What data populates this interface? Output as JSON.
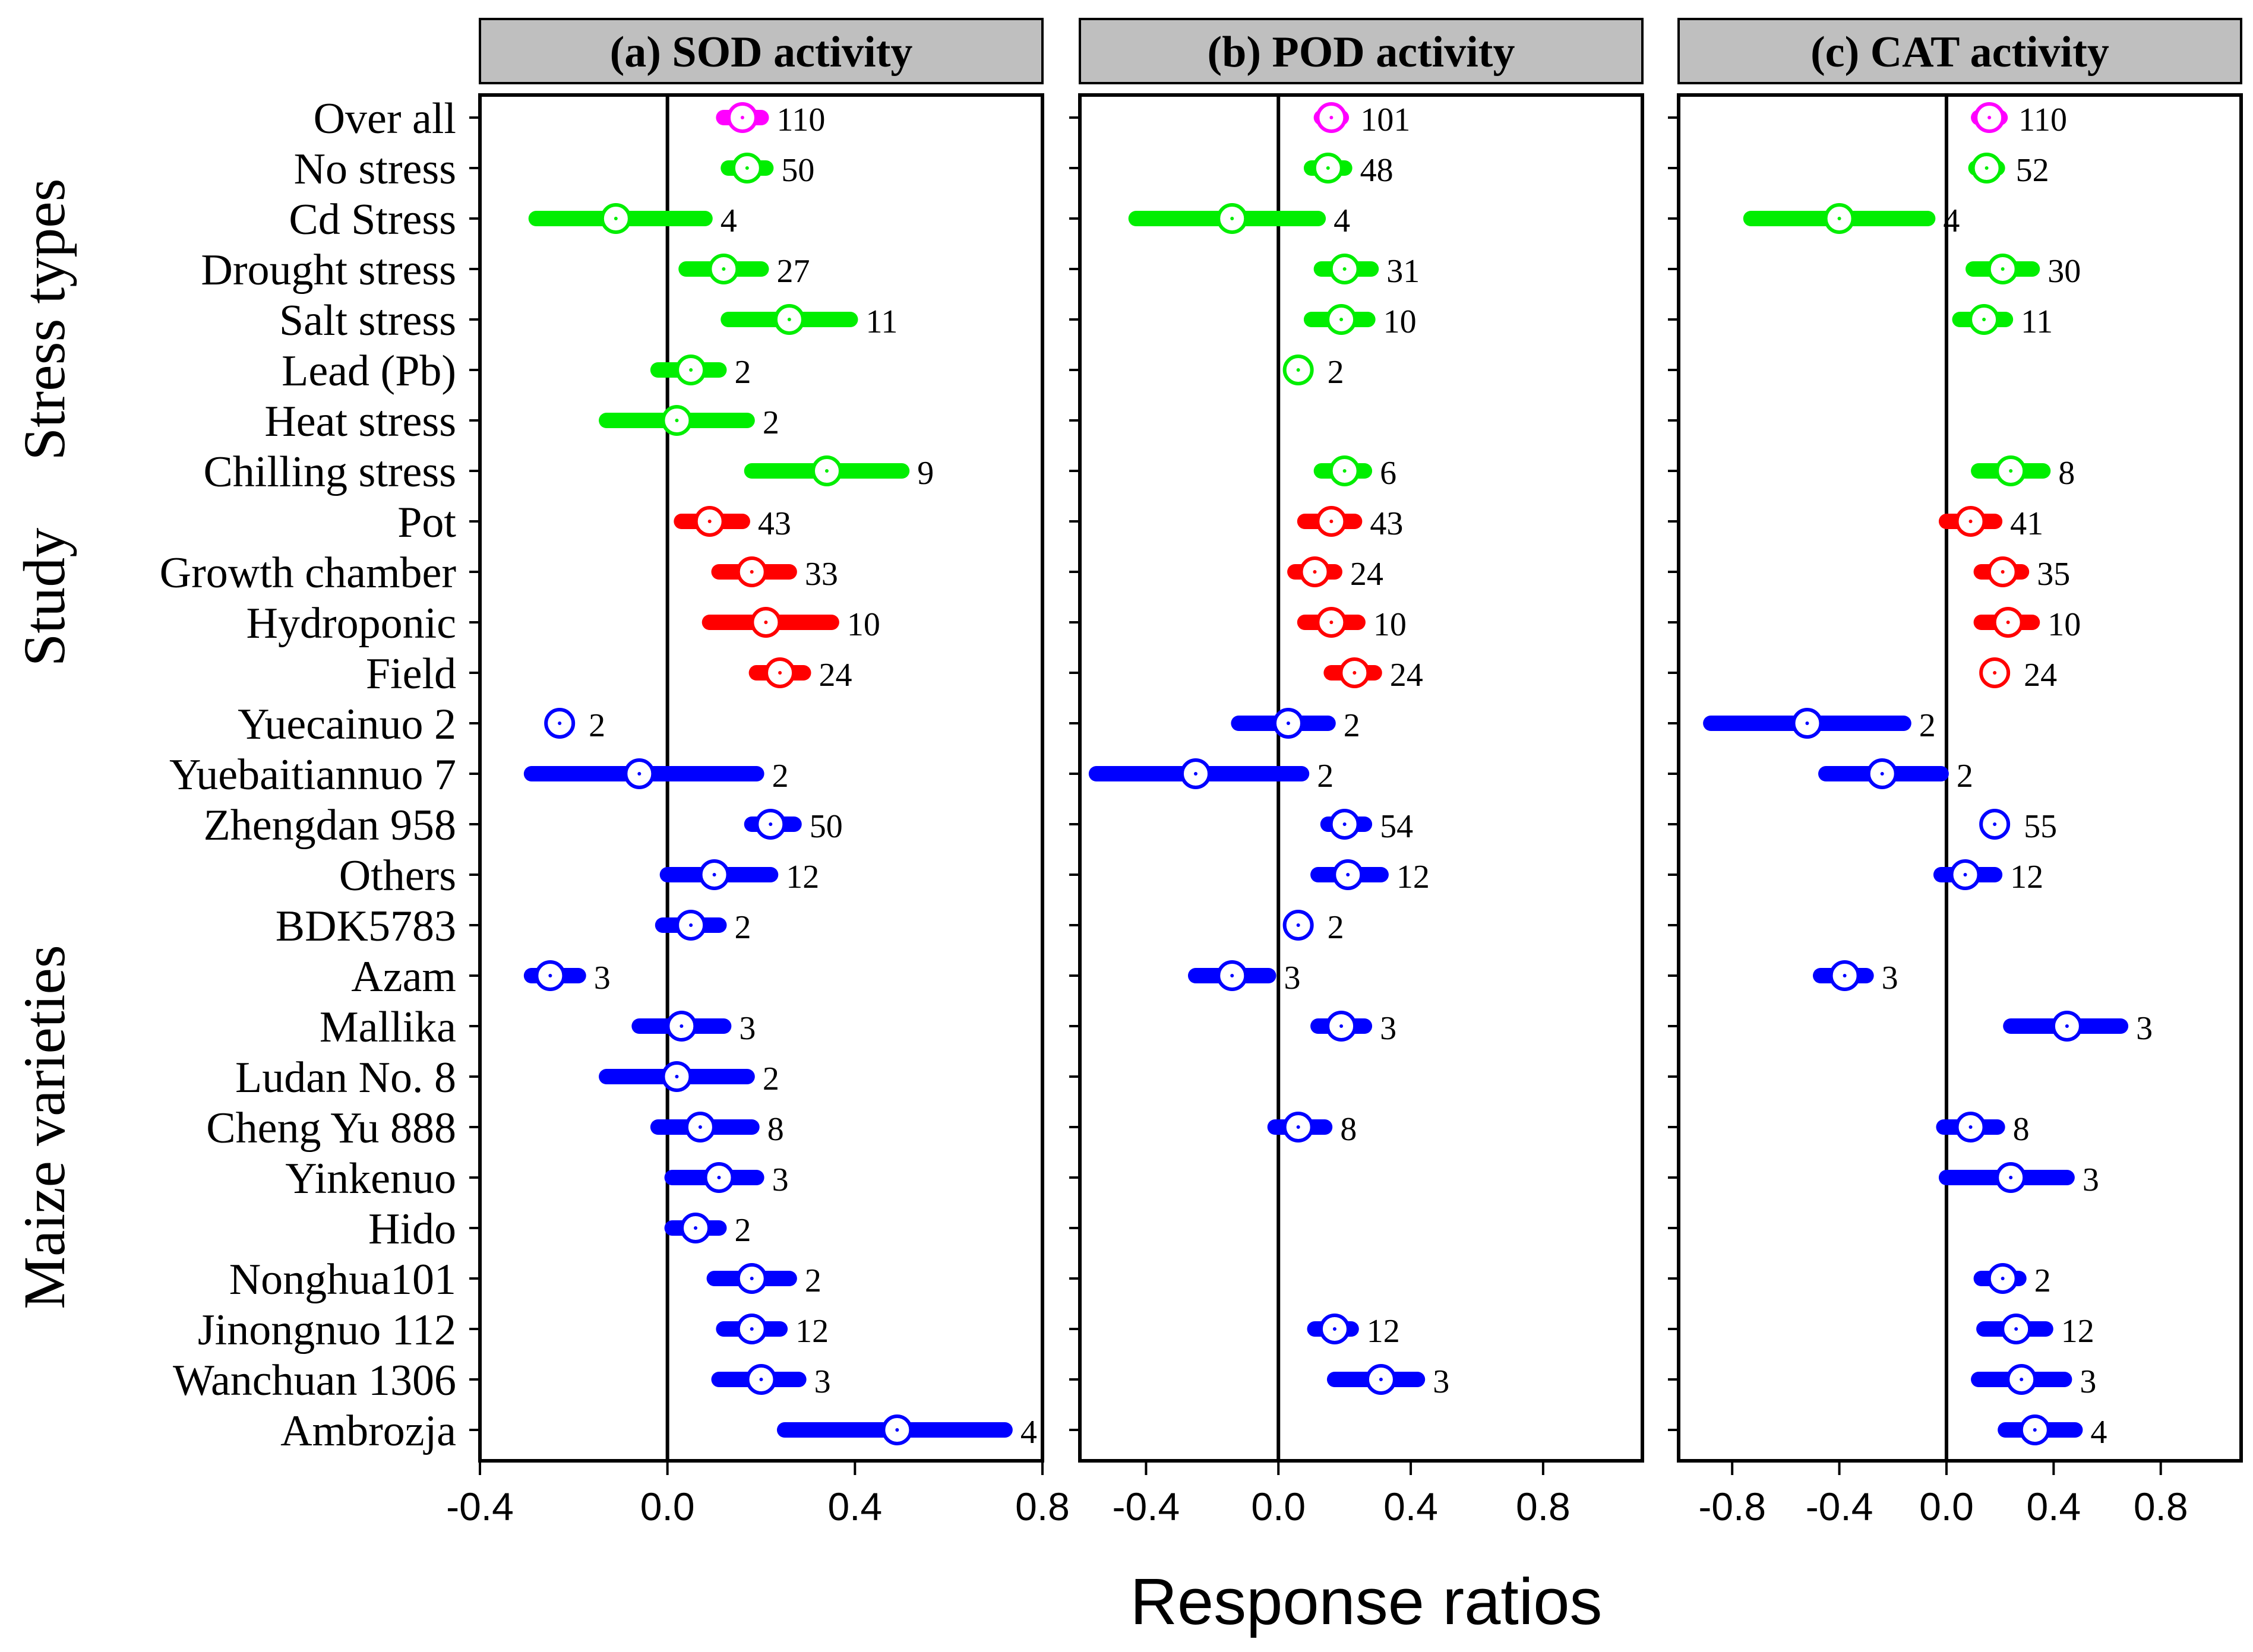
{
  "chart_data": {
    "type": "forest",
    "xlabel": "Response ratios",
    "row_labels": [
      "Over all",
      "No stress",
      "Cd Stress",
      "Drought stress",
      "Salt stress",
      "Lead (Pb)",
      "Heat stress",
      "Chilling stress",
      "Pot",
      "Growth chamber",
      "Hydroponic",
      "Field",
      "Yuecainuo 2",
      "Yuebaitiannuo 7",
      "Zhengdan 958",
      "Others",
      "BDK5783",
      "Azam",
      "Mallika",
      "Ludan No. 8",
      "Cheng Yu 888",
      "Yinkenuo",
      "Hido",
      "Nonghua101",
      "Jinongnuo 112",
      "Wanchuan 1306",
      "Ambrozja"
    ],
    "row_groups": [
      "overall",
      "stress",
      "stress",
      "stress",
      "stress",
      "stress",
      "stress",
      "stress",
      "study",
      "study",
      "study",
      "study",
      "variety",
      "variety",
      "variety",
      "variety",
      "variety",
      "variety",
      "variety",
      "variety",
      "variety",
      "variety",
      "variety",
      "variety",
      "variety",
      "variety",
      "variety"
    ],
    "group_labels": [
      {
        "label": "Stress types",
        "first_row": 1,
        "last_row": 7
      },
      {
        "label": "Study",
        "first_row": 8,
        "last_row": 11
      },
      {
        "label": "Maize varieties",
        "first_row": 14,
        "last_row": 26
      }
    ],
    "colors": {
      "overall": "#ff00ff",
      "stress": "#00ee00",
      "study": "#ff0000",
      "variety": "#0000ff",
      "axis": "#000000",
      "strip": "#bfbfbf"
    },
    "panels": [
      {
        "title": "(a) SOD activity",
        "xlim": [
          -0.4,
          0.8
        ],
        "xticks": [
          -0.4,
          0.0,
          0.4,
          0.8
        ],
        "xtick_labels": [
          "-0.4",
          "0.0",
          "0.4",
          "0.8"
        ],
        "rows": [
          {
            "mean": 0.16,
            "lo": 0.12,
            "hi": 0.2,
            "n": "110"
          },
          {
            "mean": 0.17,
            "lo": 0.13,
            "hi": 0.21,
            "n": "50"
          },
          {
            "mean": -0.11,
            "lo": -0.28,
            "hi": 0.08,
            "n": "4"
          },
          {
            "mean": 0.12,
            "lo": 0.04,
            "hi": 0.2,
            "n": "27"
          },
          {
            "mean": 0.26,
            "lo": 0.13,
            "hi": 0.39,
            "n": "11"
          },
          {
            "mean": 0.05,
            "lo": -0.02,
            "hi": 0.11,
            "n": "2"
          },
          {
            "mean": 0.02,
            "lo": -0.13,
            "hi": 0.17,
            "n": "2"
          },
          {
            "mean": 0.34,
            "lo": 0.18,
            "hi": 0.5,
            "n": "9"
          },
          {
            "mean": 0.09,
            "lo": 0.03,
            "hi": 0.16,
            "n": "43"
          },
          {
            "mean": 0.18,
            "lo": 0.11,
            "hi": 0.26,
            "n": "33"
          },
          {
            "mean": 0.21,
            "lo": 0.09,
            "hi": 0.35,
            "n": "10"
          },
          {
            "mean": 0.24,
            "lo": 0.19,
            "hi": 0.29,
            "n": "24"
          },
          {
            "mean": -0.23,
            "lo": -0.23,
            "hi": -0.23,
            "n": "2"
          },
          {
            "mean": -0.06,
            "lo": -0.29,
            "hi": 0.19,
            "n": "2"
          },
          {
            "mean": 0.22,
            "lo": 0.18,
            "hi": 0.27,
            "n": "50"
          },
          {
            "mean": 0.1,
            "lo": 0.0,
            "hi": 0.22,
            "n": "12"
          },
          {
            "mean": 0.05,
            "lo": -0.01,
            "hi": 0.11,
            "n": "2"
          },
          {
            "mean": -0.25,
            "lo": -0.29,
            "hi": -0.19,
            "n": "3"
          },
          {
            "mean": 0.03,
            "lo": -0.06,
            "hi": 0.12,
            "n": "3"
          },
          {
            "mean": 0.02,
            "lo": -0.13,
            "hi": 0.17,
            "n": "2"
          },
          {
            "mean": 0.07,
            "lo": -0.02,
            "hi": 0.18,
            "n": "8"
          },
          {
            "mean": 0.11,
            "lo": 0.01,
            "hi": 0.19,
            "n": "3"
          },
          {
            "mean": 0.06,
            "lo": 0.01,
            "hi": 0.11,
            "n": "2"
          },
          {
            "mean": 0.18,
            "lo": 0.1,
            "hi": 0.26,
            "n": "2"
          },
          {
            "mean": 0.18,
            "lo": 0.12,
            "hi": 0.24,
            "n": "12"
          },
          {
            "mean": 0.2,
            "lo": 0.11,
            "hi": 0.28,
            "n": "3"
          },
          {
            "mean": 0.49,
            "lo": 0.25,
            "hi": 0.72,
            "n": "4"
          }
        ]
      },
      {
        "title": "(b) POD activity",
        "xlim": [
          -0.6,
          1.1
        ],
        "xticks": [
          -0.4,
          0.0,
          0.4,
          0.8
        ],
        "xtick_labels": [
          "-0.4",
          "0.0",
          "0.4",
          "0.8"
        ],
        "rows": [
          {
            "mean": 0.16,
            "lo": 0.13,
            "hi": 0.19,
            "n": "101"
          },
          {
            "mean": 0.15,
            "lo": 0.1,
            "hi": 0.2,
            "n": "48"
          },
          {
            "mean": -0.14,
            "lo": -0.43,
            "hi": 0.12,
            "n": "4"
          },
          {
            "mean": 0.2,
            "lo": 0.13,
            "hi": 0.28,
            "n": "31"
          },
          {
            "mean": 0.19,
            "lo": 0.1,
            "hi": 0.27,
            "n": "10"
          },
          {
            "mean": 0.06,
            "lo": 0.06,
            "hi": 0.06,
            "n": "2"
          },
          null,
          {
            "mean": 0.2,
            "lo": 0.13,
            "hi": 0.26,
            "n": "6"
          },
          {
            "mean": 0.16,
            "lo": 0.08,
            "hi": 0.23,
            "n": "43"
          },
          {
            "mean": 0.11,
            "lo": 0.05,
            "hi": 0.17,
            "n": "24"
          },
          {
            "mean": 0.16,
            "lo": 0.08,
            "hi": 0.24,
            "n": "10"
          },
          {
            "mean": 0.23,
            "lo": 0.16,
            "hi": 0.29,
            "n": "24"
          },
          {
            "mean": 0.03,
            "lo": -0.12,
            "hi": 0.15,
            "n": "2"
          },
          {
            "mean": -0.25,
            "lo": -0.55,
            "hi": 0.07,
            "n": "2"
          },
          {
            "mean": 0.2,
            "lo": 0.15,
            "hi": 0.26,
            "n": "54"
          },
          {
            "mean": 0.21,
            "lo": 0.12,
            "hi": 0.31,
            "n": "12"
          },
          {
            "mean": 0.06,
            "lo": 0.06,
            "hi": 0.06,
            "n": "2"
          },
          {
            "mean": -0.14,
            "lo": -0.25,
            "hi": -0.03,
            "n": "3"
          },
          {
            "mean": 0.19,
            "lo": 0.12,
            "hi": 0.26,
            "n": "3"
          },
          null,
          {
            "mean": 0.06,
            "lo": -0.01,
            "hi": 0.14,
            "n": "8"
          },
          null,
          null,
          null,
          {
            "mean": 0.17,
            "lo": 0.11,
            "hi": 0.22,
            "n": "12"
          },
          {
            "mean": 0.31,
            "lo": 0.17,
            "hi": 0.42,
            "n": "3"
          },
          null
        ]
      },
      {
        "title": "(c) CAT activity",
        "xlim": [
          -1.0,
          1.1
        ],
        "xticks": [
          -0.8,
          -0.4,
          0.0,
          0.4,
          0.8
        ],
        "xtick_labels": [
          "-0.8",
          "-0.4",
          "0.0",
          "0.4",
          "0.8"
        ],
        "rows": [
          {
            "mean": 0.16,
            "lo": 0.12,
            "hi": 0.2,
            "n": "110"
          },
          {
            "mean": 0.15,
            "lo": 0.11,
            "hi": 0.19,
            "n": "52"
          },
          {
            "mean": -0.4,
            "lo": -0.73,
            "hi": -0.07,
            "n": "4"
          },
          {
            "mean": 0.21,
            "lo": 0.1,
            "hi": 0.32,
            "n": "30"
          },
          {
            "mean": 0.14,
            "lo": 0.05,
            "hi": 0.22,
            "n": "11"
          },
          null,
          null,
          {
            "mean": 0.24,
            "lo": 0.12,
            "hi": 0.36,
            "n": "8"
          },
          {
            "mean": 0.09,
            "lo": 0.0,
            "hi": 0.18,
            "n": "41"
          },
          {
            "mean": 0.21,
            "lo": 0.13,
            "hi": 0.28,
            "n": "35"
          },
          {
            "mean": 0.23,
            "lo": 0.13,
            "hi": 0.32,
            "n": "10"
          },
          {
            "mean": 0.18,
            "lo": 0.18,
            "hi": 0.18,
            "n": "24"
          },
          {
            "mean": -0.52,
            "lo": -0.88,
            "hi": -0.16,
            "n": "2"
          },
          {
            "mean": -0.24,
            "lo": -0.45,
            "hi": -0.02,
            "n": "2"
          },
          {
            "mean": 0.18,
            "lo": 0.18,
            "hi": 0.18,
            "n": "55"
          },
          {
            "mean": 0.07,
            "lo": -0.02,
            "hi": 0.18,
            "n": "12"
          },
          null,
          {
            "mean": -0.38,
            "lo": -0.47,
            "hi": -0.3,
            "n": "3"
          },
          {
            "mean": 0.45,
            "lo": 0.24,
            "hi": 0.65,
            "n": "3"
          },
          null,
          {
            "mean": 0.09,
            "lo": -0.01,
            "hi": 0.19,
            "n": "8"
          },
          {
            "mean": 0.24,
            "lo": 0.0,
            "hi": 0.45,
            "n": "3"
          },
          null,
          {
            "mean": 0.21,
            "lo": 0.13,
            "hi": 0.27,
            "n": "2"
          },
          {
            "mean": 0.26,
            "lo": 0.14,
            "hi": 0.37,
            "n": "12"
          },
          {
            "mean": 0.28,
            "lo": 0.12,
            "hi": 0.44,
            "n": "3"
          },
          {
            "mean": 0.33,
            "lo": 0.22,
            "hi": 0.48,
            "n": "4"
          }
        ]
      }
    ]
  }
}
